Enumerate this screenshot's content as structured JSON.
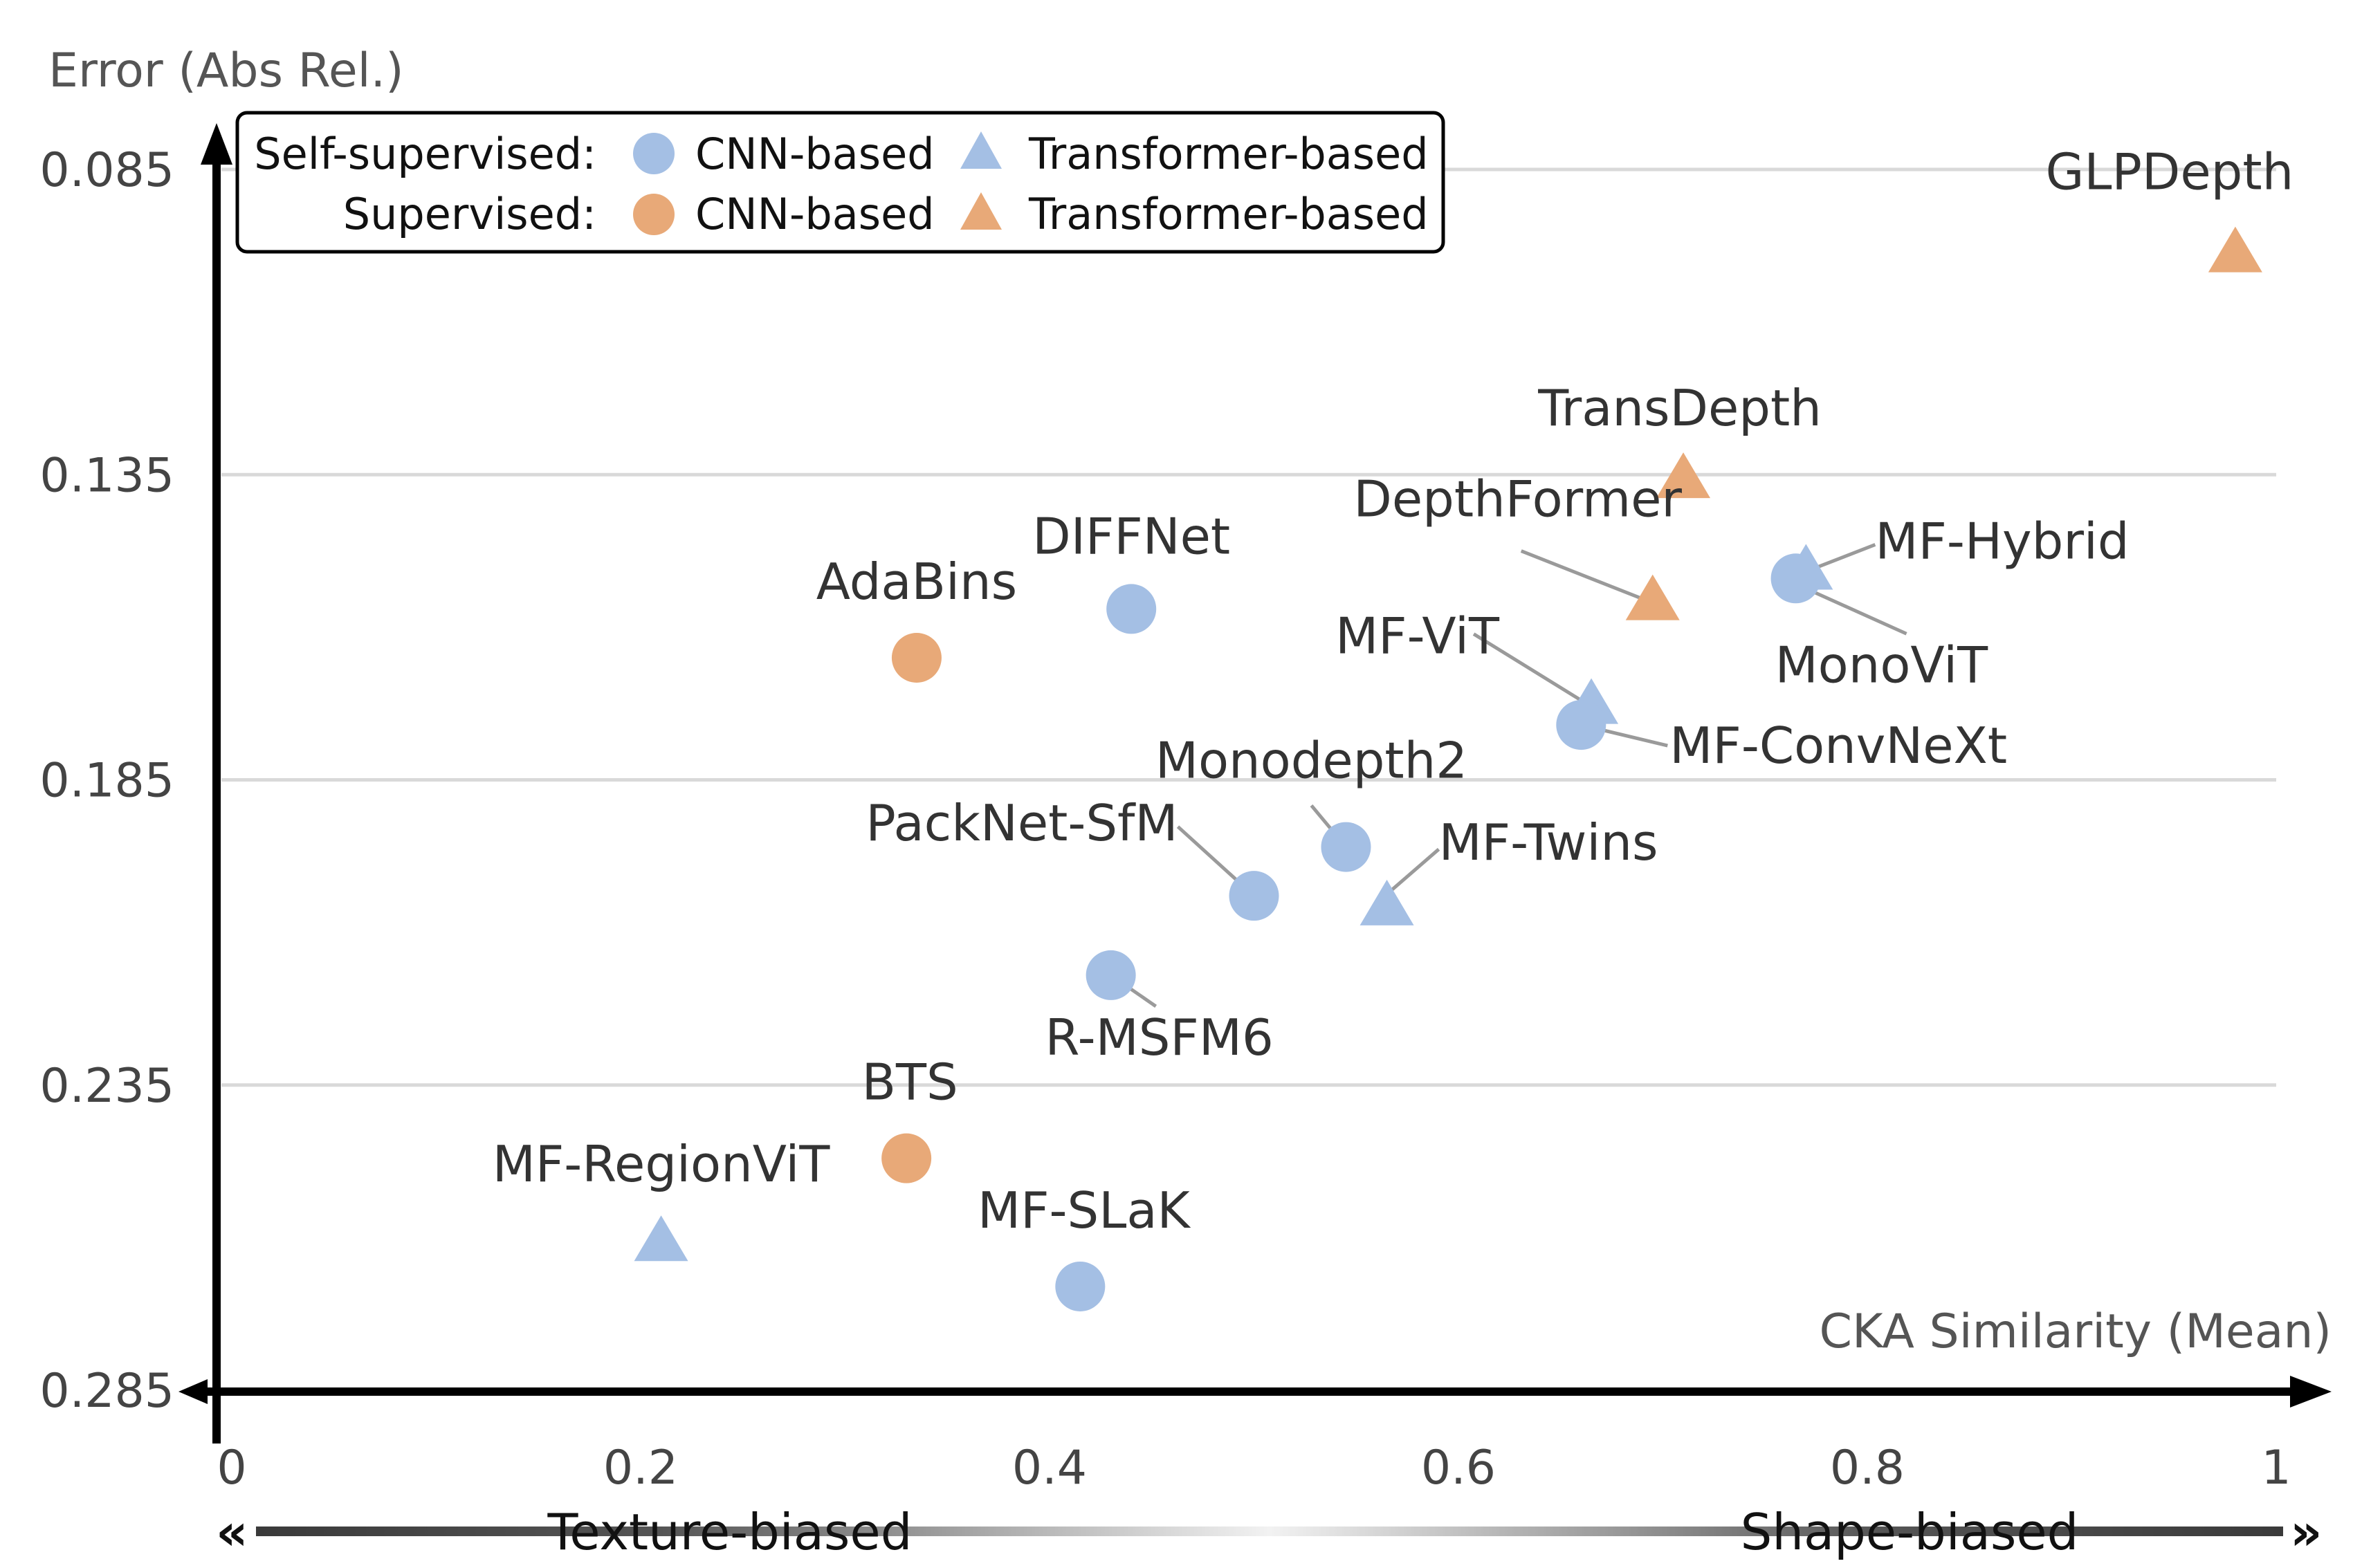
{
  "chart_data": {
    "type": "scatter",
    "xlabel": "CKA Similarity (Mean)",
    "ylabel": "Error (Abs Rel.)",
    "xlim": [
      0,
      1
    ],
    "ylim": [
      0.285,
      0.085
    ],
    "y_axis_direction": "inverted (lower error at top)",
    "x_ticks": [
      "0",
      "0.2",
      "0.4",
      "0.6",
      "0.8",
      "1"
    ],
    "x_tick_values": [
      0,
      0.2,
      0.4,
      0.6,
      0.8,
      1
    ],
    "y_ticks": [
      "0.085",
      "0.135",
      "0.185",
      "0.235",
      "0.285"
    ],
    "y_tick_values": [
      0.085,
      0.135,
      0.185,
      0.235,
      0.285
    ],
    "grid": "horizontal",
    "legend": {
      "placement": "top-left",
      "rows": [
        {
          "label": "Self-supervised:",
          "cnn": "CNN-based",
          "transformer": "Transformer-based",
          "color": "#a4bfe4"
        },
        {
          "label": "Supervised:",
          "cnn": "CNN-based",
          "transformer": "Transformer-based",
          "color": "#e8a978"
        }
      ]
    },
    "colors": {
      "self_supervised": "#a4bfe4",
      "supervised": "#e8a978"
    },
    "points": [
      {
        "name": "GLPDepth",
        "x": 0.98,
        "y": 0.099,
        "marker": "triangle",
        "group": "supervised"
      },
      {
        "name": "TransDepth",
        "x": 0.71,
        "y": 0.136,
        "marker": "triangle",
        "group": "supervised"
      },
      {
        "name": "DepthFormer",
        "x": 0.695,
        "y": 0.156,
        "marker": "triangle",
        "group": "supervised"
      },
      {
        "name": "AdaBins",
        "x": 0.335,
        "y": 0.165,
        "marker": "circle",
        "group": "supervised"
      },
      {
        "name": "BTS",
        "x": 0.33,
        "y": 0.247,
        "marker": "circle",
        "group": "supervised"
      },
      {
        "name": "DIFFNet",
        "x": 0.44,
        "y": 0.157,
        "marker": "circle",
        "group": "self_supervised"
      },
      {
        "name": "MF-Hybrid",
        "x": 0.77,
        "y": 0.151,
        "marker": "triangle",
        "group": "self_supervised"
      },
      {
        "name": "MonoViT",
        "x": 0.765,
        "y": 0.152,
        "marker": "circle",
        "group": "self_supervised"
      },
      {
        "name": "MF-ViT",
        "x": 0.665,
        "y": 0.173,
        "marker": "triangle",
        "group": "self_supervised"
      },
      {
        "name": "MF-ConvNeXt",
        "x": 0.66,
        "y": 0.176,
        "marker": "circle",
        "group": "self_supervised"
      },
      {
        "name": "Monodepth2",
        "x": 0.545,
        "y": 0.196,
        "marker": "circle",
        "group": "self_supervised"
      },
      {
        "name": "MF-Twins",
        "x": 0.565,
        "y": 0.206,
        "marker": "triangle",
        "group": "self_supervised"
      },
      {
        "name": "PackNet-SfM",
        "x": 0.5,
        "y": 0.204,
        "marker": "circle",
        "group": "self_supervised"
      },
      {
        "name": "R-MSFM6",
        "x": 0.43,
        "y": 0.217,
        "marker": "circle",
        "group": "self_supervised"
      },
      {
        "name": "MF-RegionViT",
        "x": 0.21,
        "y": 0.261,
        "marker": "triangle",
        "group": "self_supervised"
      },
      {
        "name": "MF-SLaK",
        "x": 0.415,
        "y": 0.268,
        "marker": "circle",
        "group": "self_supervised"
      }
    ],
    "bias_axis": {
      "left": "Texture-biased",
      "right": "Shape-biased"
    }
  }
}
